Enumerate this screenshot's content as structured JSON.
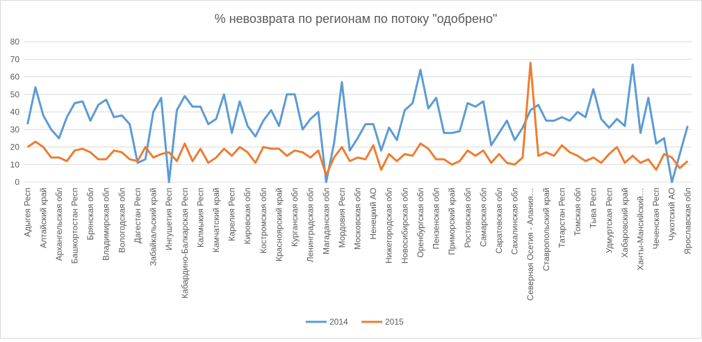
{
  "chart_data": {
    "type": "line",
    "title": "% невозврата по регионам по потоку \"одобрено\"",
    "categories": [
      "Адыгея Респ",
      null,
      "Алтайский край",
      null,
      "Архангельская обл",
      null,
      "Башкортостан Респ",
      null,
      "Брянская обл",
      null,
      "Владимирская обл",
      null,
      "Вологодская обл",
      null,
      "Дагестан Респ",
      null,
      "Забайкальский край",
      null,
      "Ингушетия Респ",
      null,
      "Кабардино-Балкарская Респ",
      null,
      "Калмыкия Респ",
      null,
      "Камчатский край",
      null,
      "Карелия Респ",
      null,
      "Кировская обл",
      null,
      "Костромская обл",
      null,
      "Красноярский край",
      null,
      "Курганская обл",
      null,
      "Ленинградская обл",
      null,
      "Магаданская обл",
      null,
      "Мордовия Респ",
      null,
      "Московская обл",
      null,
      "Ненецкий АО",
      null,
      "Нижегородская обл",
      null,
      "Новосибирская обл",
      null,
      "Оренбургская обл",
      null,
      "Пензенская обл",
      null,
      "Приморский край",
      null,
      "Ростовская обл",
      null,
      "Самарская обл",
      null,
      "Саратовская обл",
      null,
      "Сахалинская обл",
      null,
      "Северная Осетия - Алания…",
      null,
      "Ставропольский край",
      null,
      "Татарстан Респ",
      null,
      "Томская обл",
      null,
      "Тыва Респ",
      null,
      "Удмуртская Респ",
      null,
      "Хабаровский край",
      null,
      "Ханты-Мансийский…",
      null,
      "Чеченская Респ",
      null,
      "Чукотский АО",
      null,
      "Ярославская обл"
    ],
    "series": [
      {
        "name": "2014",
        "color": "#5b9bd5",
        "values": [
          33,
          54,
          38,
          30,
          25,
          37,
          45,
          46,
          35,
          44,
          47,
          37,
          38,
          33,
          11,
          13,
          40,
          48,
          0,
          41,
          49,
          43,
          43,
          33,
          36,
          50,
          28,
          46,
          32,
          26,
          35,
          41,
          32,
          50,
          50,
          30,
          36,
          40,
          0,
          22,
          57,
          18,
          25,
          33,
          33,
          18,
          31,
          24,
          41,
          45,
          64,
          42,
          48,
          28,
          28,
          29,
          45,
          43,
          46,
          21,
          28,
          35,
          24,
          31,
          41,
          44,
          35,
          35,
          37,
          35,
          40,
          37,
          53,
          36,
          31,
          36,
          32,
          67,
          28,
          48,
          22,
          25,
          0,
          16,
          32
        ]
      },
      {
        "name": "2015",
        "color": "#ed7d31",
        "values": [
          20,
          23,
          20,
          14,
          14,
          12,
          18,
          19,
          17,
          13,
          13,
          18,
          17,
          13,
          12,
          20,
          14,
          16,
          17,
          12,
          22,
          12,
          19,
          11,
          14,
          19,
          15,
          20,
          17,
          11,
          20,
          19,
          19,
          15,
          18,
          17,
          14,
          18,
          4,
          14,
          20,
          12,
          14,
          13,
          21,
          7,
          16,
          12,
          16,
          15,
          22,
          19,
          13,
          13,
          10,
          12,
          18,
          15,
          18,
          11,
          16,
          11,
          10,
          14,
          68,
          15,
          17,
          15,
          21,
          17,
          15,
          12,
          14,
          11,
          16,
          20,
          11,
          15,
          11,
          13,
          7,
          16,
          14,
          8,
          12
        ]
      }
    ],
    "ylim": [
      0,
      80
    ],
    "yticks": [
      0,
      10,
      20,
      30,
      40,
      50,
      60,
      70,
      80
    ],
    "grid": true,
    "legend": "bottom"
  }
}
